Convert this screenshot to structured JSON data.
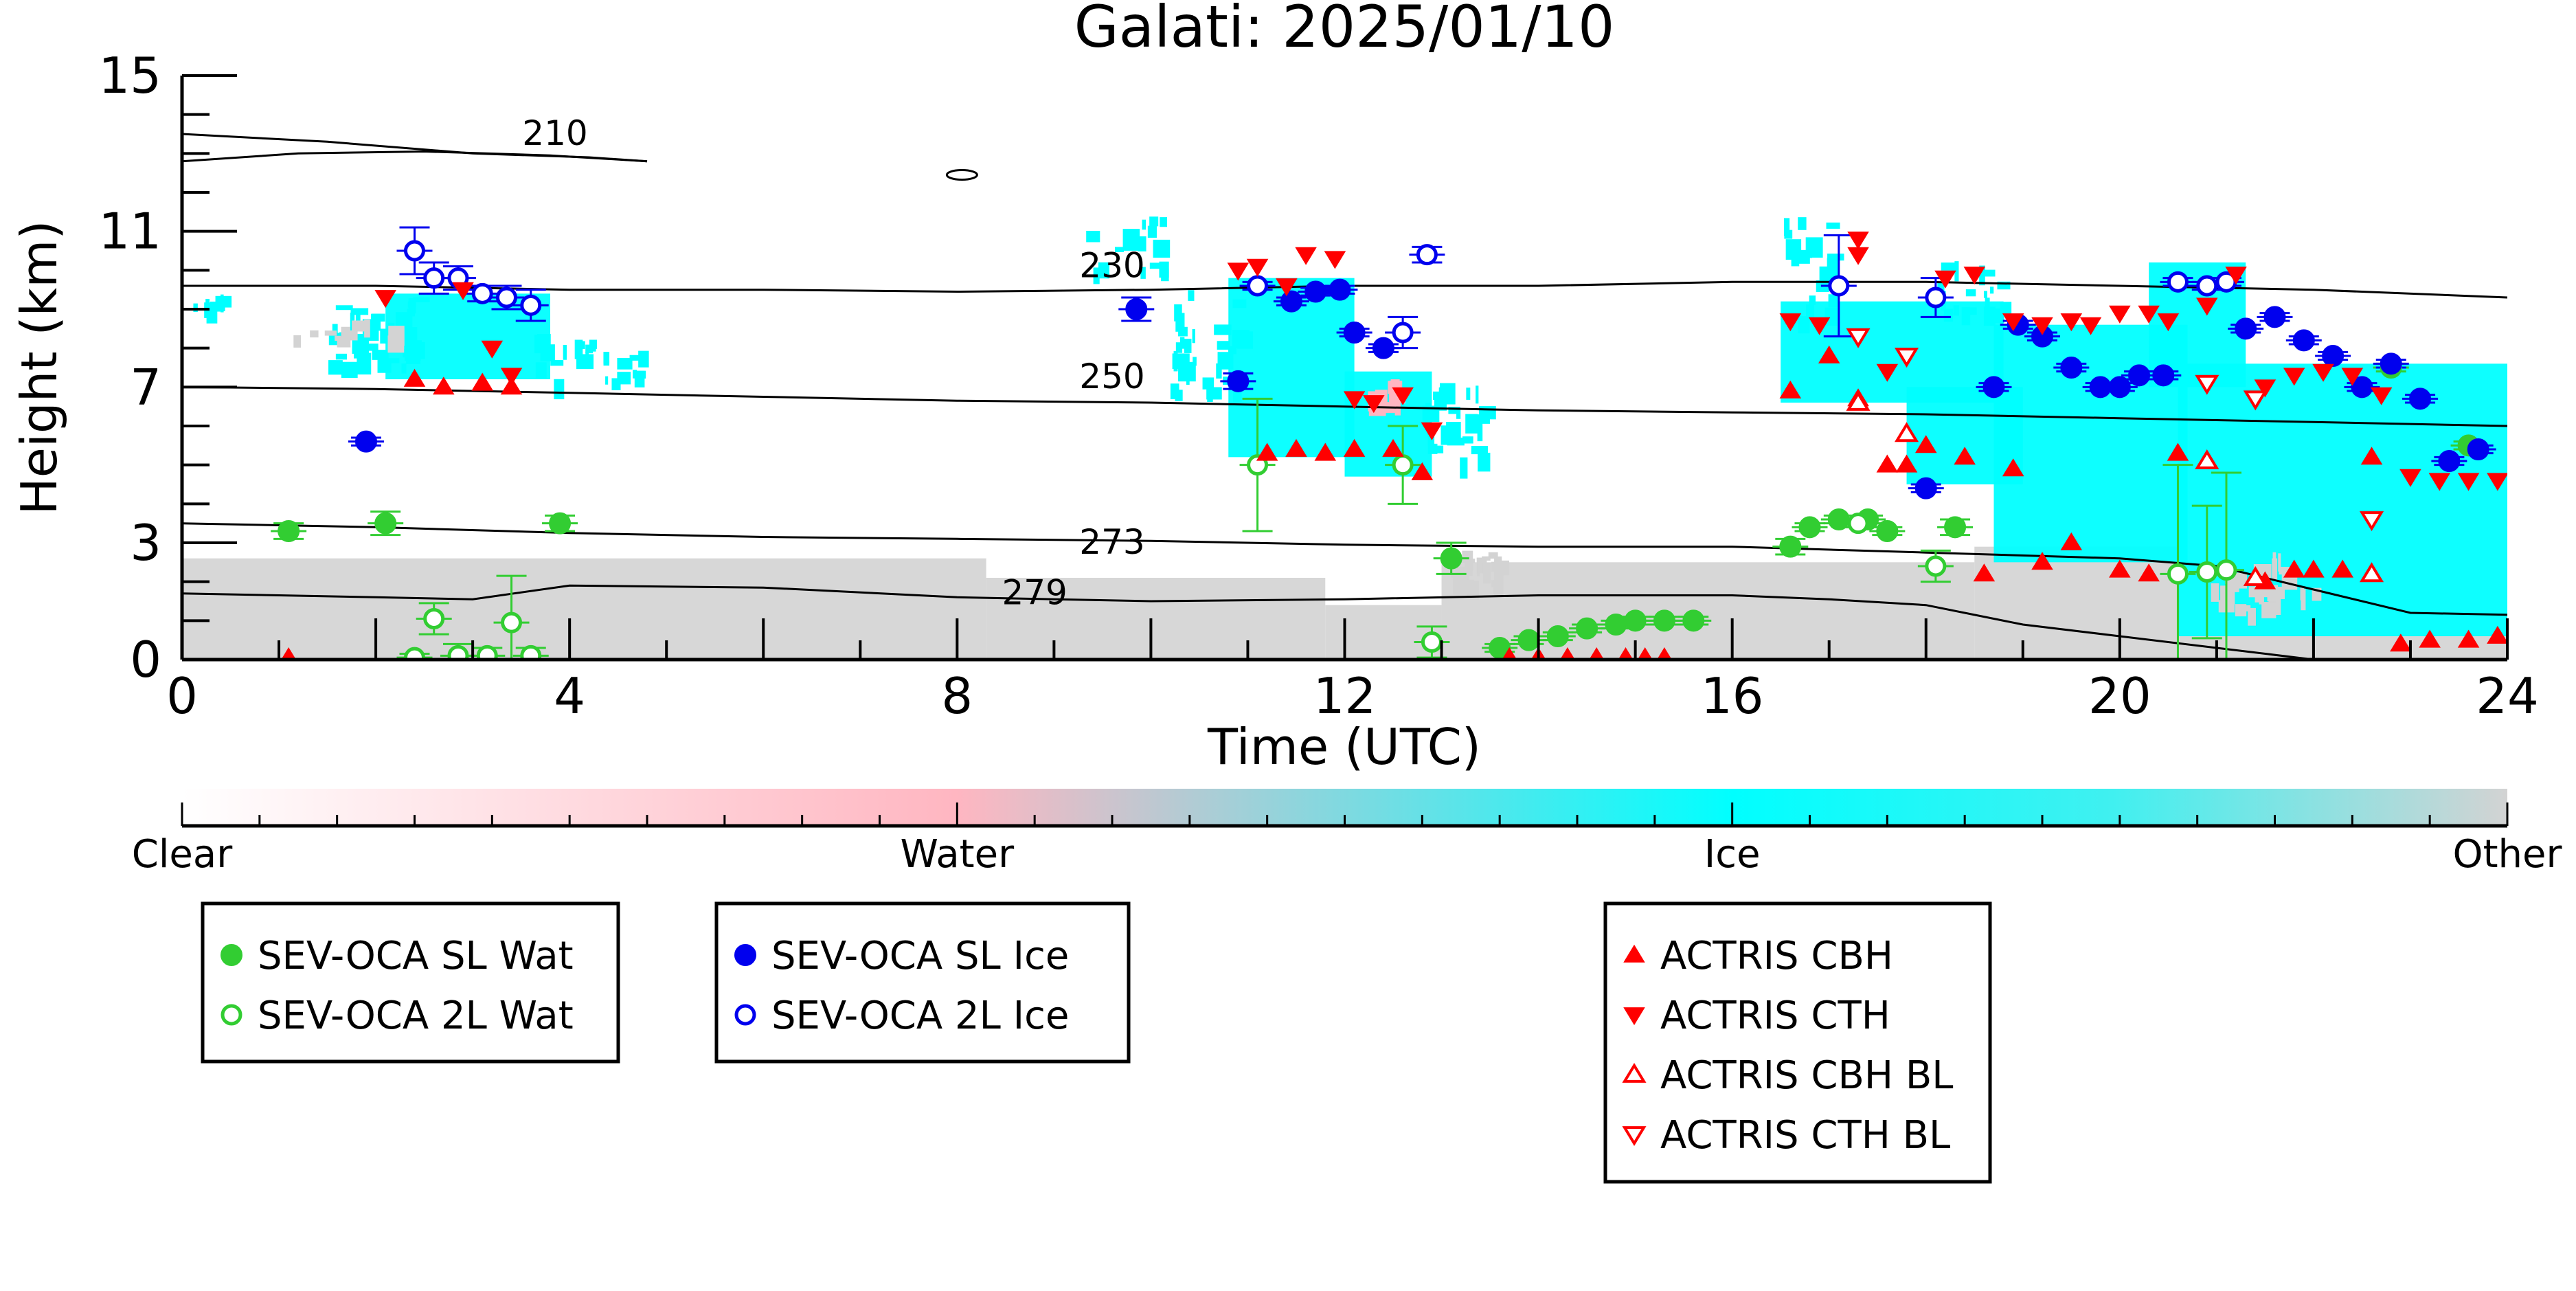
{
  "chart_data": {
    "type": "scatter",
    "title": "Galati: 2025/01/10",
    "xlabel": "Time (UTC)",
    "ylabel": "Height (km)",
    "xlim": [
      0,
      24
    ],
    "ylim": [
      0,
      15
    ],
    "xticks": [
      0,
      4,
      8,
      12,
      16,
      20,
      24
    ],
    "yticks": [
      0,
      3,
      7,
      11,
      15
    ],
    "background": "cloud classification curtain (Clear / Water / Ice / Other)",
    "colorbar": {
      "labels": [
        "Clear",
        "Water",
        "Ice",
        "Other"
      ],
      "colors": [
        "#ffffff",
        "#ffb6c1",
        "#00ffff",
        "#d3d3d3"
      ]
    },
    "isotherm_labels": [
      {
        "label": "210",
        "x": 3.85,
        "y": 13.5
      },
      {
        "label": "230",
        "x": 9.6,
        "y": 10.1
      },
      {
        "label": "250",
        "x": 9.6,
        "y": 7.25
      },
      {
        "label": "273",
        "x": 9.6,
        "y": 3.0
      },
      {
        "label": "279",
        "x": 8.8,
        "y": 1.7
      }
    ],
    "isotherms": [
      {
        "label": "210a",
        "points": [
          [
            0,
            13.5
          ],
          [
            1.5,
            13.3
          ],
          [
            3,
            13.0
          ],
          [
            4.2,
            12.9
          ],
          [
            4.8,
            12.8
          ]
        ]
      },
      {
        "label": "210b",
        "points": [
          [
            0,
            12.8
          ],
          [
            1.2,
            13.0
          ],
          [
            2.5,
            13.05
          ],
          [
            3.8,
            12.95
          ],
          [
            4.8,
            12.8
          ]
        ]
      },
      {
        "label": "230",
        "points": [
          [
            0,
            9.6
          ],
          [
            2,
            9.6
          ],
          [
            4,
            9.5
          ],
          [
            6,
            9.5
          ],
          [
            8,
            9.45
          ],
          [
            10,
            9.5
          ],
          [
            12,
            9.6
          ],
          [
            14,
            9.6
          ],
          [
            16,
            9.7
          ],
          [
            18,
            9.7
          ],
          [
            20,
            9.6
          ],
          [
            22,
            9.5
          ],
          [
            24,
            9.3
          ]
        ]
      },
      {
        "label": "250",
        "points": [
          [
            0,
            7.0
          ],
          [
            2,
            6.95
          ],
          [
            4,
            6.85
          ],
          [
            6,
            6.75
          ],
          [
            8,
            6.65
          ],
          [
            10,
            6.6
          ],
          [
            12,
            6.5
          ],
          [
            14,
            6.4
          ],
          [
            16,
            6.35
          ],
          [
            18,
            6.3
          ],
          [
            20,
            6.2
          ],
          [
            22,
            6.1
          ],
          [
            24,
            6.0
          ]
        ]
      },
      {
        "label": "273",
        "points": [
          [
            0,
            3.5
          ],
          [
            2,
            3.4
          ],
          [
            4,
            3.25
          ],
          [
            6,
            3.15
          ],
          [
            8,
            3.1
          ],
          [
            10,
            3.05
          ],
          [
            12,
            2.95
          ],
          [
            14,
            2.9
          ],
          [
            16,
            2.9
          ],
          [
            18,
            2.75
          ],
          [
            20,
            2.6
          ],
          [
            21,
            2.4
          ],
          [
            22,
            1.8
          ],
          [
            23,
            1.2
          ],
          [
            24,
            1.15
          ]
        ]
      },
      {
        "label": "279",
        "points": [
          [
            0,
            1.7
          ],
          [
            2,
            1.6
          ],
          [
            3,
            1.55
          ],
          [
            4,
            1.9
          ],
          [
            6,
            1.85
          ],
          [
            8,
            1.6
          ],
          [
            10,
            1.5
          ],
          [
            12,
            1.55
          ],
          [
            14,
            1.65
          ],
          [
            16,
            1.65
          ],
          [
            17,
            1.55
          ],
          [
            18,
            1.4
          ],
          [
            19,
            0.9
          ],
          [
            20,
            0.6
          ],
          [
            21,
            0.3
          ],
          [
            22,
            0.0
          ]
        ]
      }
    ],
    "series": [
      {
        "name": "SEV-OCA SL Wat",
        "color": "#32cd32",
        "marker": "circle",
        "filled": true,
        "x": [
          1.1,
          2.1,
          3.9,
          13.1,
          13.6,
          13.9,
          14.2,
          14.5,
          14.8,
          15.0,
          15.3,
          15.6,
          16.6,
          16.8,
          17.1,
          17.4,
          17.6,
          18.3,
          23.6,
          22.8
        ],
        "y": [
          3.3,
          3.5,
          3.5,
          2.6,
          0.3,
          0.5,
          0.6,
          0.8,
          0.9,
          1.0,
          1.0,
          1.0,
          2.9,
          3.4,
          3.6,
          3.6,
          3.3,
          3.4,
          5.5,
          7.5
        ],
        "yerr": [
          0.2,
          0.3,
          0.2,
          0.4,
          0.1,
          0.1,
          0.1,
          0.1,
          0.1,
          0.1,
          0.1,
          0.1,
          0.2,
          0.1,
          0.1,
          0.1,
          0.1,
          0.2,
          0.1,
          0.1
        ]
      },
      {
        "name": "SEV-OCA 2L Wat",
        "color": "#32cd32",
        "marker": "circle",
        "filled": false,
        "x": [
          2.4,
          2.6,
          2.85,
          3.15,
          3.4,
          3.6,
          11.1,
          12.6,
          12.9,
          17.3,
          18.1,
          20.6,
          20.9,
          21.1
        ],
        "y": [
          0.05,
          1.05,
          0.1,
          0.1,
          0.95,
          0.1,
          5.0,
          5.0,
          0.45,
          3.5,
          2.4,
          2.2,
          2.25,
          2.3
        ],
        "yerr": [
          0.1,
          0.4,
          0.3,
          0.2,
          1.2,
          0.2,
          1.7,
          1.0,
          0.4,
          0.1,
          0.4,
          2.8,
          1.7,
          2.5
        ]
      },
      {
        "name": "SEV-OCA SL Ice",
        "color": "#0000ee",
        "marker": "circle",
        "filled": true,
        "x": [
          1.9,
          9.85,
          10.9,
          11.45,
          11.7,
          11.95,
          12.1,
          12.4,
          18.0,
          18.7,
          18.95,
          19.2,
          19.5,
          19.8,
          20.0,
          20.2,
          20.45,
          21.3,
          21.6,
          21.9,
          22.2,
          22.5,
          22.8,
          23.1,
          23.4,
          23.7
        ],
        "y": [
          5.6,
          9.0,
          7.15,
          9.2,
          9.45,
          9.5,
          8.4,
          8.0,
          4.4,
          7.0,
          8.6,
          8.3,
          7.5,
          7.0,
          7.0,
          7.3,
          7.3,
          8.5,
          8.8,
          8.2,
          7.8,
          7.0,
          7.6,
          6.7,
          5.1,
          5.4
        ],
        "yerr": [
          0.1,
          0.3,
          0.2,
          0.1,
          0.1,
          0.1,
          0.1,
          0.1,
          0.1,
          0.1,
          0.1,
          0.1,
          0.1,
          0.1,
          0.1,
          0.1,
          0.1,
          0.1,
          0.1,
          0.1,
          0.1,
          0.1,
          0.1,
          0.1,
          0.1,
          0.1
        ]
      },
      {
        "name": "SEV-OCA 2L Ice",
        "color": "#0000ee",
        "marker": "circle",
        "filled": false,
        "x": [
          2.4,
          2.6,
          2.85,
          3.1,
          3.35,
          3.6,
          11.1,
          12.6,
          12.85,
          17.1,
          18.1,
          20.6,
          20.9,
          21.1
        ],
        "y": [
          10.5,
          9.8,
          9.8,
          9.4,
          9.3,
          9.1,
          9.6,
          8.4,
          10.4,
          9.6,
          9.3,
          9.7,
          9.6,
          9.7
        ],
        "yerr": [
          0.6,
          0.4,
          0.3,
          0.2,
          0.3,
          0.4,
          0.1,
          0.4,
          0.2,
          1.3,
          0.5,
          0.1,
          0.1,
          0.1
        ]
      },
      {
        "name": "ACTRIS CBH",
        "color": "#ff0000",
        "marker": "triangle-up",
        "filled": true,
        "x": [
          1.1,
          2.4,
          2.7,
          3.1,
          3.4,
          11.2,
          11.5,
          11.8,
          12.1,
          12.5,
          12.8,
          13.7,
          14.0,
          14.3,
          14.6,
          14.9,
          15.1,
          15.3,
          16.6,
          17.0,
          17.3,
          17.6,
          17.8,
          18.0,
          18.4,
          18.6,
          18.9,
          19.2,
          19.5,
          20.0,
          20.3,
          20.6,
          21.5,
          21.8,
          22.0,
          22.3,
          22.6,
          22.9,
          23.2,
          23.6,
          23.9
        ],
        "y": [
          0.05,
          7.2,
          7.0,
          7.1,
          7.0,
          5.3,
          5.4,
          5.3,
          5.4,
          5.4,
          4.8,
          0.05,
          0.05,
          0.05,
          0.05,
          0.05,
          0.05,
          0.05,
          6.9,
          7.8,
          6.7,
          5.0,
          5.0,
          5.5,
          5.2,
          2.2,
          4.9,
          2.5,
          3.0,
          2.3,
          2.2,
          5.3,
          2.0,
          2.3,
          2.3,
          2.3,
          5.2,
          0.4,
          0.5,
          0.5,
          0.6
        ],
        "yerr": []
      },
      {
        "name": "ACTRIS CTH",
        "color": "#ff0000",
        "marker": "triangle-down",
        "filled": true,
        "x": [
          2.1,
          2.9,
          3.2,
          3.4,
          10.9,
          11.1,
          11.4,
          11.6,
          11.9,
          12.1,
          12.3,
          12.6,
          12.9,
          16.6,
          16.9,
          17.3,
          17.3,
          17.6,
          18.2,
          18.5,
          18.9,
          19.2,
          19.5,
          19.7,
          20.0,
          20.3,
          20.5,
          20.9,
          21.2,
          21.5,
          21.8,
          22.1,
          22.4,
          22.7,
          23.0,
          23.3,
          23.6,
          23.9
        ],
        "y": [
          9.3,
          9.5,
          8.0,
          7.3,
          10.0,
          10.1,
          9.6,
          10.4,
          10.3,
          6.7,
          6.6,
          6.8,
          5.9,
          8.7,
          8.6,
          10.8,
          10.4,
          7.4,
          9.8,
          9.9,
          8.7,
          8.6,
          8.7,
          8.6,
          8.9,
          8.9,
          8.7,
          9.1,
          9.9,
          7.0,
          7.3,
          7.4,
          7.3,
          6.8,
          4.7,
          4.6,
          4.6,
          4.6
        ],
        "yerr": []
      },
      {
        "name": "ACTRIS CBH BL",
        "color": "#ff0000",
        "marker": "triangle-up",
        "filled": false,
        "x": [
          17.3,
          17.8,
          20.9,
          21.4,
          22.6
        ],
        "y": [
          6.6,
          5.8,
          5.1,
          2.1,
          2.2
        ],
        "yerr": []
      },
      {
        "name": "ACTRIS CTH BL",
        "color": "#ff0000",
        "marker": "triangle-down",
        "filled": false,
        "x": [
          17.3,
          17.8,
          20.9,
          21.4,
          22.6
        ],
        "y": [
          8.3,
          7.8,
          7.1,
          6.7,
          3.6
        ],
        "yerr": []
      }
    ],
    "legend_groups": [
      [
        "SEV-OCA SL Wat",
        "SEV-OCA 2L Wat"
      ],
      [
        "SEV-OCA SL Ice",
        "SEV-OCA 2L Ice"
      ],
      [
        "ACTRIS CBH",
        "ACTRIS CTH",
        "ACTRIS CBH BL",
        "ACTRIS CTH BL"
      ]
    ]
  }
}
